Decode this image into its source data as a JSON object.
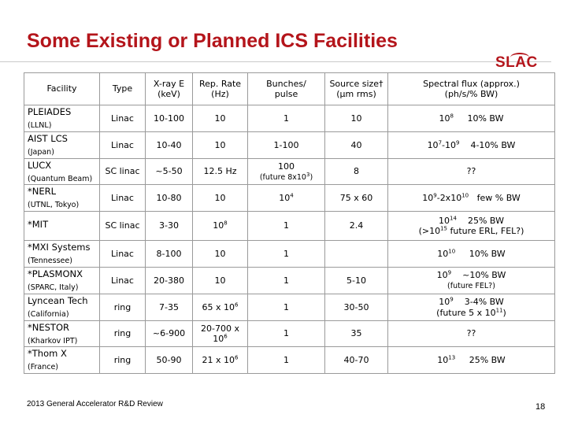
{
  "title": "Some Existing or Planned ICS Facilities",
  "logo": "SLAC",
  "headers": {
    "facility": "Facility",
    "type": "Type",
    "xray_l1": "X-ray E",
    "xray_l2": "(keV)",
    "rep_l1": "Rep. Rate",
    "rep_l2": "(Hz)",
    "bunch_l1": "Bunches/",
    "bunch_l2": "pulse",
    "src_l1": "Source size†",
    "src_l2": "(μm rms)",
    "flux_l1": "Spectral flux (approx.)",
    "flux_l2": "(ph/s/% BW)"
  },
  "rows": [
    {
      "name": "PLEIADES",
      "loc": "(LLNL)",
      "type": "Linac",
      "xray": "10-100",
      "rep": "10",
      "bunch": "1",
      "src": "10",
      "flux_a": "10",
      "flux_a_exp": "8",
      "flux_b": "10% BW"
    },
    {
      "name": "AIST LCS",
      "loc": "(Japan)",
      "type": "Linac",
      "xray": "10-40",
      "rep": "10",
      "bunch": "1-100",
      "src": "40",
      "flux_a": "10",
      "flux_a_exp": "7",
      "flux_mid": "-10",
      "flux_mid_exp": "9",
      "flux_b": "4-10% BW"
    },
    {
      "name": "LUCX",
      "loc": "(Quantum Beam)",
      "type": "SC linac",
      "xray": "~5-50",
      "rep": "12.5 Hz",
      "bunch": "100",
      "bunch_sub": "(future 8x10",
      "bunch_sub_exp": "3",
      "bunch_sub_end": ")",
      "src": "8",
      "flux": "??"
    },
    {
      "name": "*NERL",
      "loc": "(UTNL, Tokyo)",
      "type": "Linac",
      "xray": "10-80",
      "rep": "10",
      "bunch": "10",
      "bunch_exp": "4",
      "src": "75 x 60",
      "flux_a": "10",
      "flux_a_exp": "9",
      "flux_mid": "-2x10",
      "flux_mid_exp": "10",
      "flux_b": "few % BW"
    },
    {
      "name": "*MIT",
      "loc": "",
      "type": "SC linac",
      "xray": "3-30",
      "rep": "10",
      "rep_exp": "8",
      "bunch": "1",
      "src": "2.4",
      "flux_a": "10",
      "flux_a_exp": "14",
      "flux_b": "25% BW",
      "flux_sub": "(>10",
      "flux_sub_exp": "15",
      "flux_sub_end": " future ERL, FEL?)"
    },
    {
      "name": "*MXI Systems",
      "loc": "(Tennessee)",
      "type": "Linac",
      "xray": "8-100",
      "rep": "10",
      "bunch": "1",
      "src": "",
      "flux_a": "10",
      "flux_a_exp": "10",
      "flux_b": "10% BW"
    },
    {
      "name": "*PLASMONX",
      "loc": "(SPARC, Italy)",
      "type": "Linac",
      "xray": "20-380",
      "rep": "10",
      "bunch": "1",
      "src": "5-10",
      "flux_a": "10",
      "flux_a_exp": "9",
      "flux_b": "~10% BW",
      "flux_sub": "(future FEL?)"
    },
    {
      "name": "Lyncean Tech",
      "loc": "(California)",
      "type": "ring",
      "xray": "7-35",
      "rep": "65 x 10",
      "rep_exp": "6",
      "bunch": "1",
      "src": "30-50",
      "flux_a": "10",
      "flux_a_exp": "9",
      "flux_b": "3-4% BW",
      "flux_sub": "(future 5 x 10",
      "flux_sub_exp": "11",
      "flux_sub_end": ")"
    },
    {
      "name": "*NESTOR",
      "loc": "(Kharkov IPT)",
      "type": "ring",
      "xray": "~6-900",
      "rep": "20-700 x 10",
      "rep_exp": "6",
      "bunch": "1",
      "src": "35",
      "flux": "??"
    },
    {
      "name": "*Thom X",
      "loc": "(France)",
      "type": "ring",
      "xray": "50-90",
      "rep": "21 x 10",
      "rep_exp": "6",
      "bunch": "1",
      "src": "40-70",
      "flux_a": "10",
      "flux_a_exp": "13",
      "flux_b": "25% BW"
    }
  ],
  "footer": "2013 General Accelerator R&D Review",
  "page_number": "18"
}
